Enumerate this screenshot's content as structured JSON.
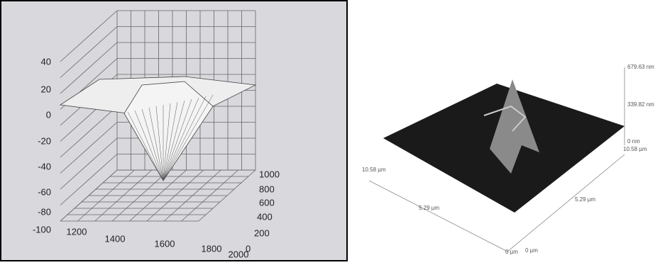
{
  "surface_plot": {
    "z_ticks": [
      40,
      20,
      0,
      -20,
      -40,
      -60,
      -80,
      -100
    ],
    "x_ticks": [
      1200,
      1400,
      1600,
      1800,
      2000
    ],
    "y_ticks": [
      1000,
      800,
      600,
      400,
      200,
      0
    ]
  },
  "afm_image": {
    "height_labels": [
      "679.63 nm",
      "339.82 nm",
      "0 nm"
    ],
    "right_axis_labels": [
      "10.58 µm",
      "5.29 µm",
      "0 µm"
    ],
    "left_axis_labels": [
      "10.58 µm",
      "5.29 µm",
      "0 µm"
    ]
  }
}
